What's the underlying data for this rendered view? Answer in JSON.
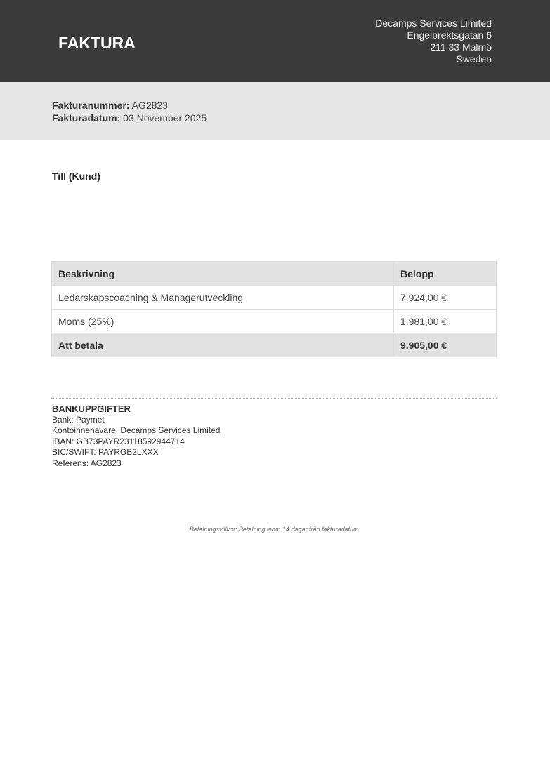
{
  "header": {
    "title": "FAKTURA",
    "company": [
      "Decamps Services Limited",
      "Engelbrektsgatan 6",
      "211 33 Malmö",
      "Sweden"
    ]
  },
  "meta": {
    "number_label": "Fakturanummer:",
    "number": "AG2823",
    "date_label": "Fakturadatum:",
    "date": "03 November 2025"
  },
  "customer": {
    "label": "Till (Kund)"
  },
  "table": {
    "headers": [
      "Beskrivning",
      "Belopp"
    ],
    "rows": [
      [
        "Ledarskapscoaching & Managerutveckling",
        "7.924,00 €"
      ],
      [
        "Moms (25%)",
        "1.981,00 €"
      ]
    ],
    "total": [
      "Att betala",
      "9.905,00 €"
    ]
  },
  "bank": {
    "heading": "BANKUPPGIFTER",
    "lines": [
      "Bank: Paymet",
      "Kontoinnehavare: Decamps Services Limited",
      "IBAN: GB73PAYR23118592944714",
      "BIC/SWIFT: PAYRGB2LXXX",
      "Referens: AG2823"
    ]
  },
  "terms": "Betalningsvillkor: Betalning inom 14 dagar från fakturadatum."
}
